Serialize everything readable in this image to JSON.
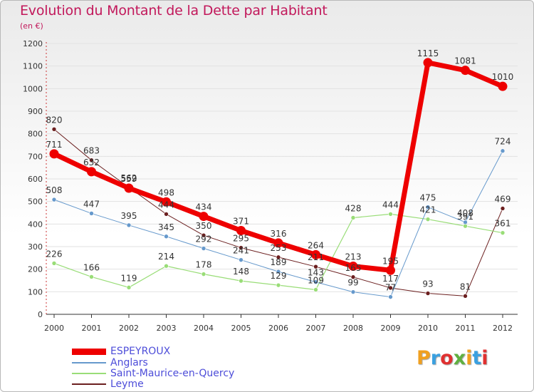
{
  "header": {
    "title": "Evolution du Montant de la Dette par Habitant",
    "unit": "(en €)"
  },
  "logo": {
    "text": "Proxiti",
    "colors": [
      "#f0a020",
      "#3aa0e0",
      "#e03030",
      "#60b040",
      "#f0a020",
      "#3aa0e0",
      "#e03030"
    ]
  },
  "chart_data": {
    "type": "line",
    "title": "Evolution du Montant de la Dette par Habitant",
    "xlabel": "",
    "ylabel": "(en €)",
    "ylim": [
      0,
      1200
    ],
    "yticks": [
      0,
      100,
      200,
      300,
      400,
      500,
      600,
      700,
      800,
      900,
      1000,
      1100,
      1200
    ],
    "grid": true,
    "legend": "bottom-left",
    "x": [
      "2000",
      "2001",
      "2002",
      "2003",
      "2004",
      "2005",
      "2006",
      "2007",
      "2008",
      "2009",
      "2010",
      "2011",
      "2012"
    ],
    "series": [
      {
        "name": "Leyme",
        "color": "#6b1f1f",
        "width": 1,
        "marker": 3,
        "values": [
          820,
          683,
          562,
          444,
          350,
          295,
          253,
          211,
          165,
          117,
          93,
          81,
          469
        ]
      },
      {
        "name": "Saint-Maurice-en-Quercy",
        "color": "#99dd77",
        "width": 1.2,
        "marker": 3,
        "values": [
          226,
          166,
          119,
          214,
          178,
          148,
          129,
          109,
          428,
          444,
          421,
          391,
          361
        ]
      },
      {
        "name": "Anglars",
        "color": "#6699cc",
        "width": 1,
        "marker": 3,
        "values": [
          508,
          447,
          395,
          345,
          292,
          241,
          189,
          143,
          99,
          77,
          475,
          408,
          724
        ]
      },
      {
        "name": "ESPEYROUX",
        "color": "#ee0000",
        "width": 7,
        "marker": 6.5,
        "values": [
          711,
          632,
          559,
          498,
          434,
          371,
          316,
          264,
          213,
          195,
          1115,
          1081,
          1010
        ]
      }
    ],
    "legend_order": [
      "ESPEYROUX",
      "Anglars",
      "Saint-Maurice-en-Quercy",
      "Leyme"
    ]
  }
}
